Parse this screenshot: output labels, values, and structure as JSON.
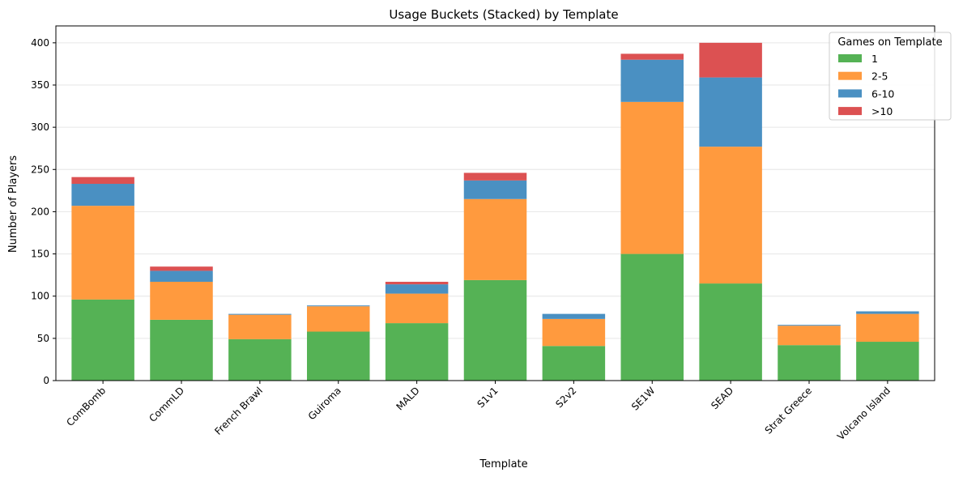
{
  "chart_data": {
    "type": "bar",
    "stacked": true,
    "title": "Usage Buckets (Stacked) by Template",
    "xlabel": "Template",
    "ylabel": "Number of Players",
    "ylim": [
      0,
      420
    ],
    "yticks": [
      0,
      50,
      100,
      150,
      200,
      250,
      300,
      350,
      400
    ],
    "grid": "horizontal",
    "legend_title": "Games on Template",
    "legend_position": "top-right",
    "categories": [
      "ComBomb",
      "CommLD",
      "French Brawl",
      "Guiroma",
      "MALD",
      "S1v1",
      "S2v2",
      "SE1W",
      "SEAD",
      "Strat Greece",
      "Volcano Island"
    ],
    "series": [
      {
        "name": "1",
        "color": "#55b255",
        "values": [
          96,
          72,
          49,
          58,
          68,
          119,
          41,
          150,
          115,
          42,
          46
        ]
      },
      {
        "name": "2-5",
        "color": "#ff9a3e",
        "values": [
          111,
          45,
          29,
          30,
          35,
          96,
          32,
          180,
          162,
          23,
          33
        ]
      },
      {
        "name": "6-10",
        "color": "#4a90c2",
        "values": [
          26,
          13,
          1,
          1,
          11,
          22,
          6,
          50,
          82,
          1,
          3
        ]
      },
      {
        "name": ">10",
        "color": "#dc5152",
        "values": [
          8,
          5,
          0,
          0,
          3,
          9,
          0,
          7,
          41,
          0,
          0
        ]
      }
    ]
  }
}
